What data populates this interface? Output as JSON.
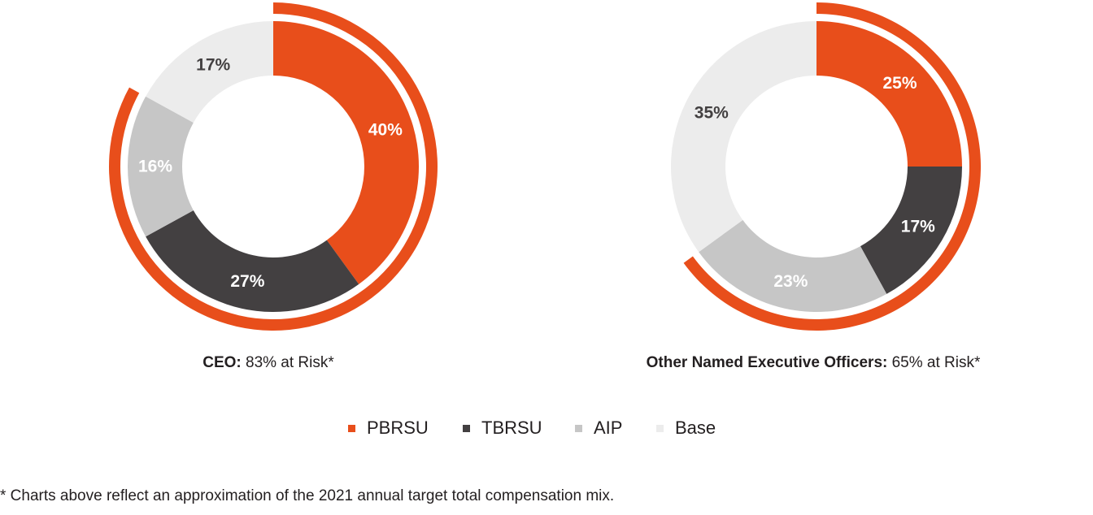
{
  "chart_data": [
    {
      "type": "pie",
      "title_bold": "CEO:",
      "title_rest": " 83% at Risk*",
      "slices": [
        {
          "name": "PBRSU",
          "value": 40,
          "label": "40%"
        },
        {
          "name": "TBRSU",
          "value": 27,
          "label": "27%"
        },
        {
          "name": "AIP",
          "value": 16,
          "label": "16%"
        },
        {
          "name": "Base",
          "value": 17,
          "label": "17%"
        }
      ],
      "at_risk_percent": 83
    },
    {
      "type": "pie",
      "title_bold": "Other Named Executive Officers:",
      "title_rest": " 65% at Risk*",
      "slices": [
        {
          "name": "PBRSU",
          "value": 25,
          "label": "25%"
        },
        {
          "name": "TBRSU",
          "value": 17,
          "label": "17%"
        },
        {
          "name": "AIP",
          "value": 23,
          "label": "23%"
        },
        {
          "name": "Base",
          "value": 35,
          "label": "35%"
        }
      ],
      "at_risk_percent": 65
    }
  ],
  "legend": [
    {
      "name": "PBRSU",
      "color": "#e84e1b"
    },
    {
      "name": "TBRSU",
      "color": "#434041"
    },
    {
      "name": "AIP",
      "color": "#c6c6c6"
    },
    {
      "name": "Base",
      "color": "#ececec"
    }
  ],
  "colors": {
    "PBRSU": "#e84e1b",
    "TBRSU": "#434041",
    "AIP": "#c6c6c6",
    "Base": "#ececec",
    "at_risk_arc": "#e84e1b",
    "label_dark": "#434041",
    "label_light": "#ffffff"
  },
  "footnote": "* Charts above reflect an approximation of the 2021 annual target total compensation mix."
}
